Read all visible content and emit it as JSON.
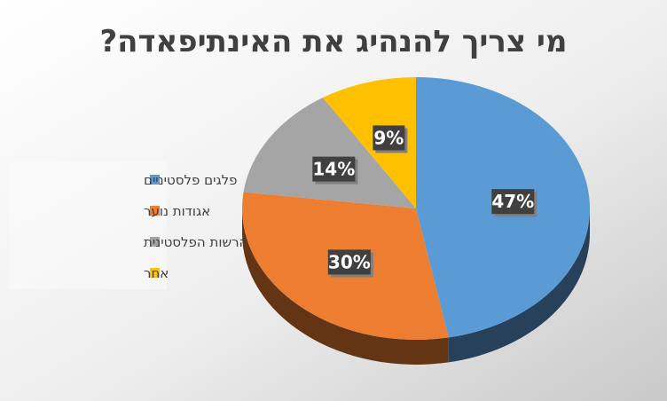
{
  "chart_data": {
    "type": "pie",
    "title": "מי צריך להנהיג את האינתיפאדה?",
    "categories": [
      "פלגים פלסטיניים",
      "אגודות נוער",
      "הרשות הפלסטינית",
      "אחר"
    ],
    "values": [
      47,
      30,
      14,
      9
    ],
    "labels": [
      "47%",
      "30%",
      "14%",
      "9%"
    ],
    "colors": [
      "#5b9bd5",
      "#ed7d31",
      "#a5a5a5",
      "#ffc000"
    ],
    "legend_position": "left",
    "style": "3d"
  }
}
